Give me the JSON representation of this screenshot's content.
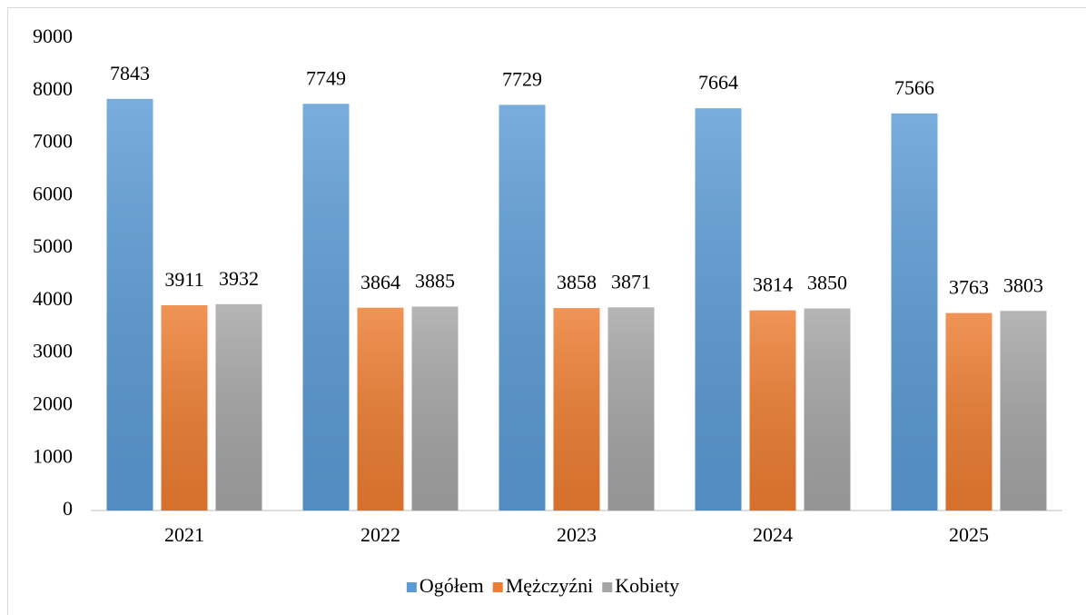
{
  "chart_data": {
    "type": "bar",
    "categories": [
      "2021",
      "2022",
      "2023",
      "2024",
      "2025"
    ],
    "series": [
      {
        "name": "Ogółem",
        "color": "#5b9bd5",
        "values": [
          7843,
          7749,
          7729,
          7664,
          7566
        ]
      },
      {
        "name": "Mężczyźni",
        "color": "#ed7d31",
        "values": [
          3911,
          3864,
          3858,
          3814,
          3763
        ]
      },
      {
        "name": "Kobiety",
        "color": "#a5a5a5",
        "values": [
          3932,
          3885,
          3871,
          3850,
          3803
        ]
      }
    ],
    "ylim": [
      0,
      9000
    ],
    "yticks": [
      0,
      1000,
      2000,
      3000,
      4000,
      5000,
      6000,
      7000,
      8000,
      9000
    ],
    "grid": false,
    "legend": "bottom",
    "data_labels": true
  }
}
